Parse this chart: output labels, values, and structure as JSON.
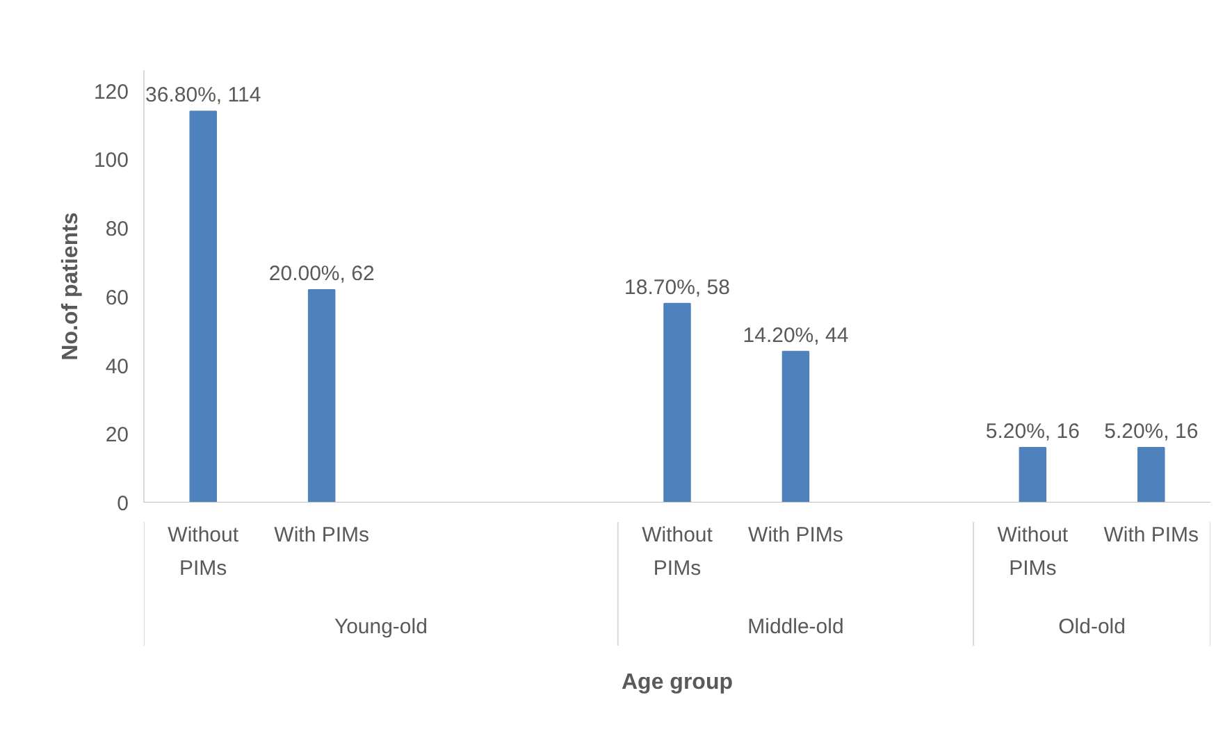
{
  "chart_data": {
    "type": "bar",
    "xlabel": "Age group",
    "ylabel": "No.of patients",
    "categories": [
      "Without PIMs",
      "With PIMs",
      null,
      null,
      "Without PIMs",
      "With PIMs",
      null,
      "Without PIMs",
      "With PIMs"
    ],
    "annotations": [
      "Young-old",
      "Middle-old",
      "Old-old"
    ],
    "series": [
      {
        "color": "#4f81bd",
        "values": [
          114,
          62,
          null,
          null,
          58,
          44,
          null,
          16,
          16
        ],
        "value_labels": [
          "36.80%, 114",
          "20.00%, 62",
          null,
          null,
          "18.70%, 58",
          "14.20%, 44",
          null,
          "5.20%, 16",
          "5.20%, 16"
        ]
      }
    ],
    "ylim": [
      0,
      126
    ],
    "yticks": [
      0,
      20,
      40,
      60,
      80,
      100,
      120
    ],
    "grid": false
  }
}
